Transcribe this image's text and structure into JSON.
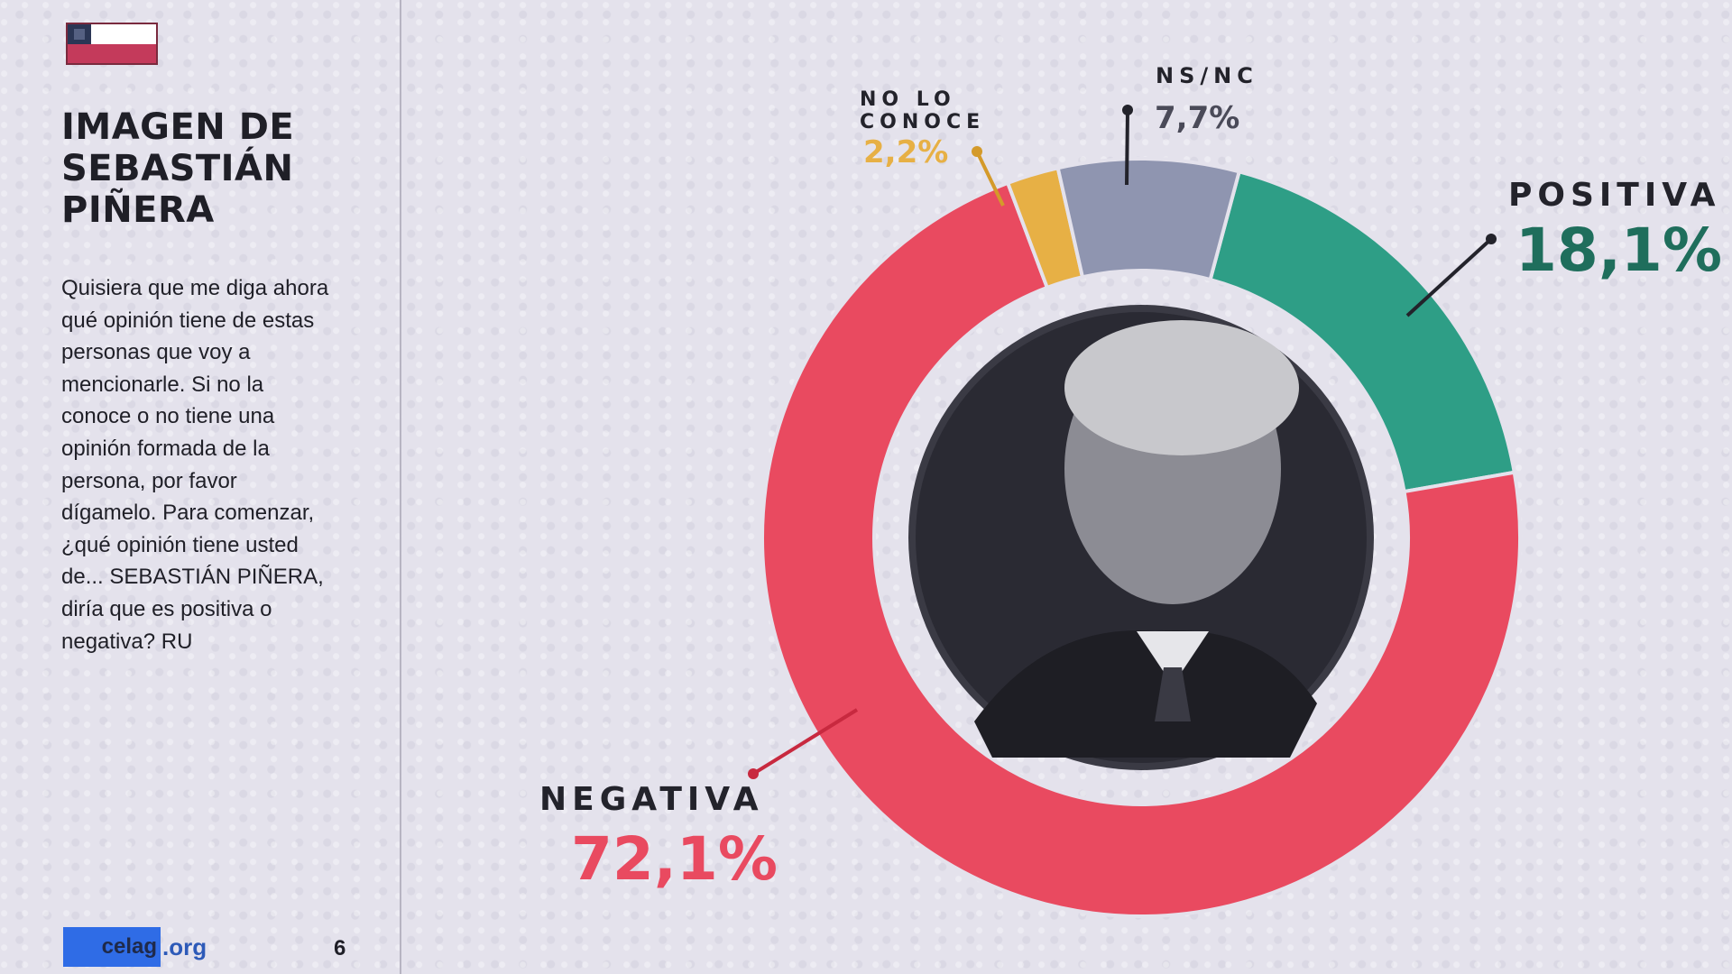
{
  "page": {
    "title_lines": [
      "IMAGEN DE",
      "SEBASTIÁN",
      "PIÑERA"
    ],
    "question_lines": [
      "Quisiera que me diga ahora",
      "qué opinión tiene de estas",
      "personas que voy a",
      "mencionarle. Si no la",
      "conoce o no tiene una",
      "opinión formada de la",
      "persona, por favor",
      "dígamelo. Para comenzar,",
      "¿qué opinión tiene usted",
      "de... SEBASTIÁN PIÑERA,",
      "diría que es positiva o",
      "negativa? RU"
    ],
    "logo_text": "celag",
    "logo_suffix": ".org",
    "page_number": "6"
  },
  "colors": {
    "negativa": "#e94a60",
    "positiva": "#2e9e86",
    "nsnc": "#8f95b0",
    "no_lo_conoce": "#e7b045",
    "positiva_label": "#1f6e5c",
    "dark_label": "#23232b"
  },
  "chart_data": {
    "type": "pie",
    "variant": "donut",
    "center_image": "portrait-photo",
    "slices": [
      {
        "label": "POSITIVA",
        "value": 18.1,
        "value_text": "18,1%",
        "color": "#2e9e86"
      },
      {
        "label": "NEGATIVA",
        "value": 72.1,
        "value_text": "72,1%",
        "color": "#e94a60"
      },
      {
        "label_lines": [
          "NO LO",
          "CONOCE"
        ],
        "value": 2.2,
        "value_text": "2,2%",
        "color": "#e7b045"
      },
      {
        "label": "NS/NC",
        "value": 7.7,
        "value_text": "7,7%",
        "color": "#8f95b0"
      }
    ]
  }
}
